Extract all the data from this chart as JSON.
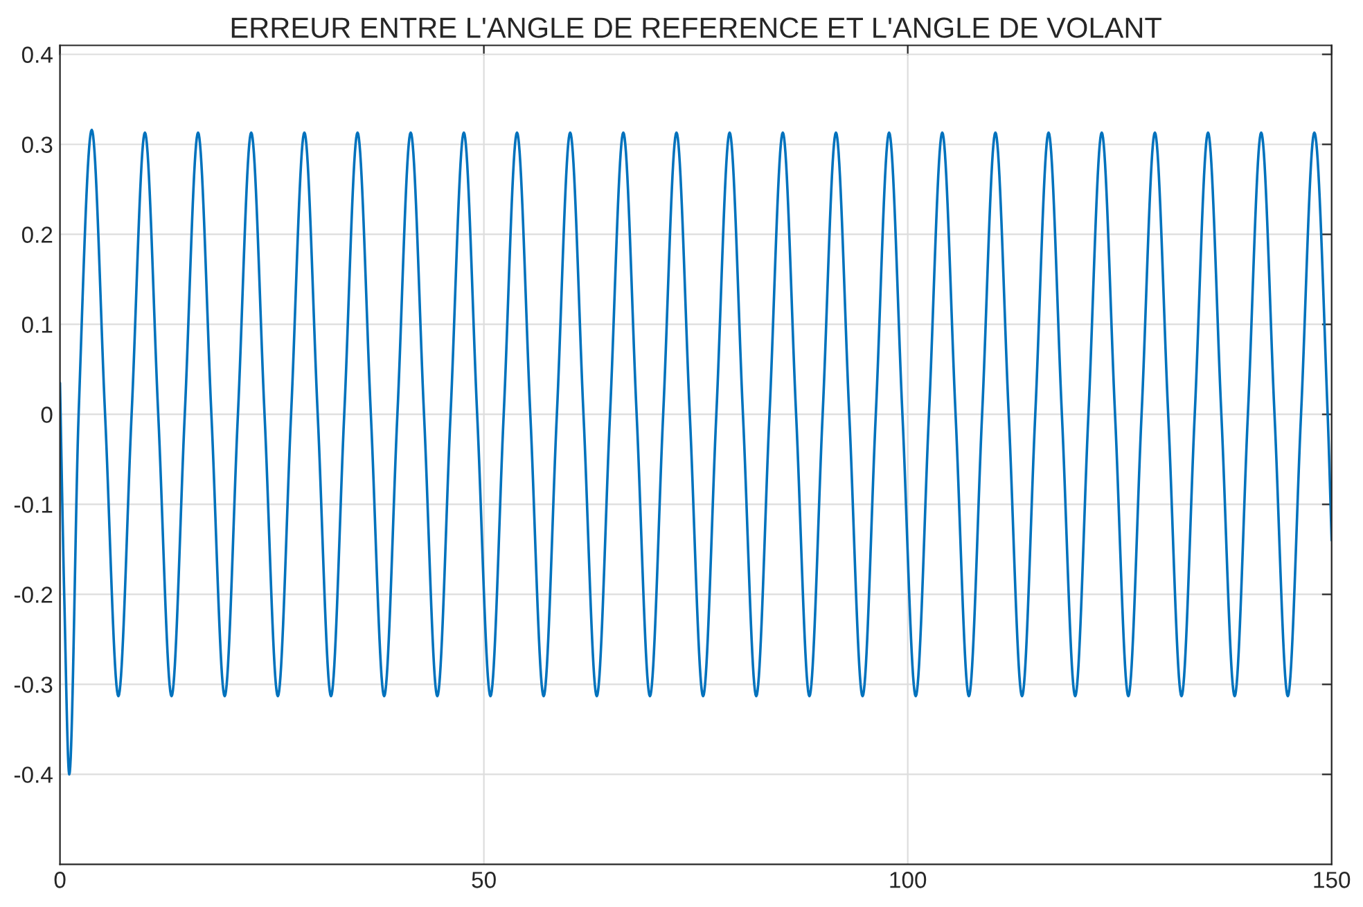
{
  "chart_data": {
    "type": "line",
    "title": "ERREUR ENTRE L'ANGLE DE REFERENCE ET L'ANGLE DE VOLANT",
    "xlim": [
      0,
      150
    ],
    "xticks": [
      0,
      50,
      100,
      150
    ],
    "ylim": [
      -0.5,
      0.41
    ],
    "yticks": [
      -0.4,
      -0.3,
      -0.2,
      -0.1,
      0,
      0.1,
      0.2,
      0.3,
      0.4
    ],
    "grid": true,
    "legend": false,
    "marker": "none",
    "line_style": "solid",
    "series": [
      {
        "color": "#0072bd",
        "x": [
          0,
          0.5,
          1.1,
          2.2,
          3.75,
          5.32,
          6.89,
          8.45,
          10.02,
          11.59,
          13.16,
          14.72,
          16.29,
          17.86,
          19.43,
          20.99,
          22.56,
          24.13,
          25.7,
          27.26,
          28.83,
          30.4,
          31.97,
          33.53,
          35.1,
          36.67,
          38.24,
          39.8,
          41.37,
          42.94,
          44.51,
          46.07,
          47.64,
          49.21,
          50.78,
          52.34,
          53.91,
          55.48,
          57.05,
          58.61,
          60.18,
          61.75,
          63.32,
          64.88,
          66.45,
          68.02,
          69.59,
          71.15,
          72.72,
          74.29,
          75.86,
          77.42,
          78.99,
          80.56,
          82.13,
          83.69,
          85.26,
          86.83,
          88.4,
          89.96,
          91.53,
          93.1,
          94.67,
          96.23,
          97.8,
          99.37,
          100.94,
          102.5,
          104.07,
          105.64,
          107.21,
          108.77,
          110.34,
          111.91,
          113.48,
          115.04,
          116.61,
          118.18,
          119.75,
          121.31,
          122.88,
          124.45,
          126.02,
          127.58,
          129.15,
          130.72,
          132.29,
          133.85,
          135.42,
          136.99,
          138.56,
          140.12,
          141.69,
          143.26,
          144.83,
          146.39,
          147.96,
          149.53,
          150
        ],
        "values": [
          0.035,
          -0.2,
          -0.4,
          0,
          0.316,
          0,
          -0.313,
          0,
          0.313,
          0,
          -0.313,
          0,
          0.313,
          0,
          -0.313,
          0,
          0.313,
          0,
          -0.313,
          0,
          0.313,
          0,
          -0.313,
          0,
          0.313,
          0,
          -0.313,
          0,
          0.313,
          0,
          -0.313,
          0,
          0.313,
          0,
          -0.313,
          0,
          0.313,
          0,
          -0.313,
          0,
          0.313,
          0,
          -0.313,
          0,
          0.313,
          0,
          -0.313,
          0,
          0.313,
          0,
          -0.313,
          0,
          0.313,
          0,
          -0.313,
          0,
          0.313,
          0,
          -0.313,
          0,
          0.313,
          0,
          -0.313,
          0,
          0.313,
          0,
          -0.313,
          0,
          0.313,
          0,
          -0.313,
          0,
          0.313,
          0,
          -0.313,
          0,
          0.313,
          0,
          -0.313,
          0,
          0.313,
          0,
          -0.313,
          0,
          0.313,
          0,
          -0.313,
          0,
          0.313,
          0,
          -0.313,
          0,
          0.313,
          0,
          -0.313,
          0,
          0.313,
          0,
          -0.14
        ]
      }
    ]
  }
}
